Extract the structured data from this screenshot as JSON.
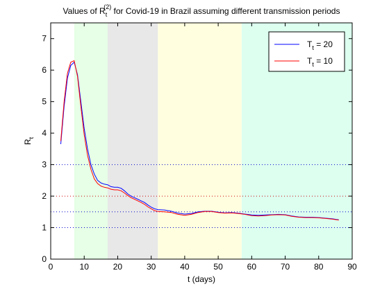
{
  "chart_data": {
    "type": "line",
    "title": {
      "prefix": "Values of R",
      "sub": "t",
      "sup": "(2)",
      "suffix": " for Covid-19 in Brazil assuming different transmission periods"
    },
    "xlabel": "t (days)",
    "ylabel": {
      "base": "R",
      "sub": "t"
    },
    "xlim": [
      0,
      90
    ],
    "ylim": [
      0,
      7.5
    ],
    "xticks": [
      0,
      10,
      20,
      30,
      40,
      50,
      60,
      70,
      80,
      90
    ],
    "yticks": [
      0,
      1,
      2,
      3,
      4,
      5,
      6,
      7
    ],
    "grid": false,
    "legend_position": "top-right",
    "shaded_regions": [
      {
        "x": [
          7,
          17
        ],
        "color": "#e6ffe6"
      },
      {
        "x": [
          17,
          32
        ],
        "color": "#e8e8e8"
      },
      {
        "x": [
          32,
          57
        ],
        "color": "#ffffe0"
      },
      {
        "x": [
          57,
          90
        ],
        "color": "#dcfff0"
      }
    ],
    "reference_lines": [
      {
        "y": 3,
        "color": "#0000cc",
        "style": "dotted"
      },
      {
        "y": 2,
        "color": "#cc0000",
        "style": "dotted"
      },
      {
        "y": 1.5,
        "color": "#0000cc",
        "style": "dotted"
      },
      {
        "y": 1,
        "color": "#0000cc",
        "style": "dotted"
      }
    ],
    "series": [
      {
        "name": {
          "base": "T",
          "sub": "t",
          "rest": " = 20"
        },
        "color": "#0000ff",
        "x": [
          3,
          4,
          5,
          6,
          7,
          8,
          9,
          10,
          11,
          12,
          13,
          14,
          15,
          16,
          17,
          18,
          19,
          20,
          21,
          22,
          23,
          24,
          25,
          26,
          27,
          28,
          29,
          30,
          31,
          32,
          34,
          36,
          38,
          40,
          42,
          44,
          46,
          48,
          50,
          52,
          54,
          56,
          58,
          60,
          62,
          64,
          66,
          68,
          70,
          72,
          74,
          76,
          78,
          80,
          82,
          84,
          86
        ],
        "y": [
          3.65,
          4.85,
          5.75,
          6.15,
          6.25,
          5.85,
          5.0,
          4.15,
          3.5,
          3.0,
          2.7,
          2.5,
          2.42,
          2.38,
          2.36,
          2.3,
          2.28,
          2.28,
          2.25,
          2.17,
          2.07,
          2.0,
          1.95,
          1.9,
          1.85,
          1.8,
          1.72,
          1.65,
          1.6,
          1.57,
          1.56,
          1.52,
          1.46,
          1.43,
          1.45,
          1.5,
          1.52,
          1.52,
          1.49,
          1.47,
          1.48,
          1.46,
          1.43,
          1.4,
          1.39,
          1.4,
          1.41,
          1.42,
          1.41,
          1.37,
          1.34,
          1.33,
          1.33,
          1.32,
          1.3,
          1.28,
          1.25
        ]
      },
      {
        "name": {
          "base": "T",
          "sub": "t",
          "rest": " = 10"
        },
        "color": "#ff0000",
        "x": [
          3,
          4,
          5,
          6,
          7,
          8,
          9,
          10,
          11,
          12,
          13,
          14,
          15,
          16,
          17,
          18,
          19,
          20,
          21,
          22,
          23,
          24,
          25,
          26,
          27,
          28,
          29,
          30,
          31,
          32,
          34,
          36,
          38,
          40,
          42,
          44,
          46,
          48,
          50,
          52,
          54,
          56,
          58,
          60,
          62,
          64,
          66,
          68,
          70,
          72,
          74,
          76,
          78,
          80,
          82,
          84,
          86
        ],
        "y": [
          3.75,
          5.0,
          5.9,
          6.25,
          6.3,
          5.8,
          4.85,
          3.95,
          3.3,
          2.85,
          2.55,
          2.4,
          2.32,
          2.28,
          2.26,
          2.22,
          2.2,
          2.2,
          2.17,
          2.1,
          2.02,
          1.95,
          1.9,
          1.85,
          1.8,
          1.74,
          1.66,
          1.6,
          1.54,
          1.51,
          1.5,
          1.48,
          1.42,
          1.39,
          1.42,
          1.48,
          1.51,
          1.51,
          1.48,
          1.46,
          1.47,
          1.45,
          1.42,
          1.38,
          1.37,
          1.38,
          1.4,
          1.41,
          1.4,
          1.36,
          1.33,
          1.32,
          1.32,
          1.31,
          1.29,
          1.27,
          1.24
        ]
      }
    ]
  }
}
